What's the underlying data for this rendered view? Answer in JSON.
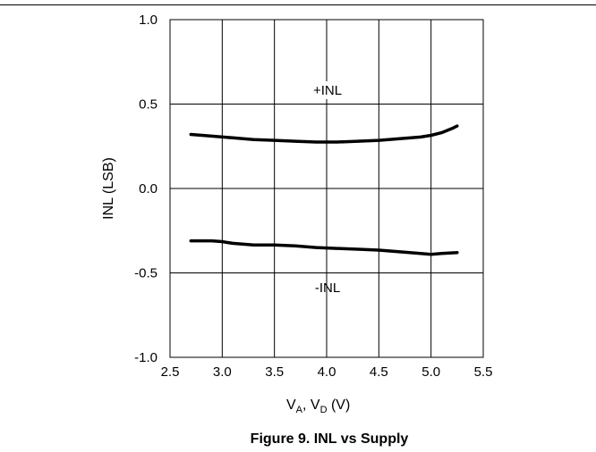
{
  "figure": {
    "caption": "Figure 9. INL vs Supply"
  },
  "chart_data": {
    "type": "line",
    "xlabel": "V_A, V_D (V)",
    "ylabel": "INL (LSB)",
    "xlim": [
      2.5,
      5.5
    ],
    "ylim": [
      -1.0,
      1.0
    ],
    "x_ticks": [
      "2.5",
      "3.0",
      "3.5",
      "4.0",
      "4.5",
      "5.0",
      "5.5"
    ],
    "y_ticks": [
      "1.0",
      "0.5",
      "0.0",
      "-0.5",
      "-1.0"
    ],
    "grid": true,
    "series": [
      {
        "name": "+INL",
        "x": [
          2.7,
          2.9,
          3.1,
          3.3,
          3.5,
          3.7,
          3.9,
          4.1,
          4.3,
          4.5,
          4.7,
          4.9,
          5.0,
          5.1,
          5.2,
          5.25
        ],
        "y": [
          0.32,
          0.31,
          0.3,
          0.29,
          0.285,
          0.28,
          0.275,
          0.275,
          0.28,
          0.285,
          0.295,
          0.305,
          0.315,
          0.33,
          0.355,
          0.37
        ]
      },
      {
        "name": "-INL",
        "x": [
          2.7,
          2.9,
          3.0,
          3.1,
          3.3,
          3.5,
          3.7,
          3.9,
          4.1,
          4.3,
          4.5,
          4.7,
          4.9,
          5.0,
          5.1,
          5.25
        ],
        "y": [
          -0.31,
          -0.31,
          -0.315,
          -0.325,
          -0.335,
          -0.335,
          -0.34,
          -0.35,
          -0.355,
          -0.36,
          -0.365,
          -0.375,
          -0.385,
          -0.39,
          -0.385,
          -0.38
        ]
      }
    ]
  }
}
